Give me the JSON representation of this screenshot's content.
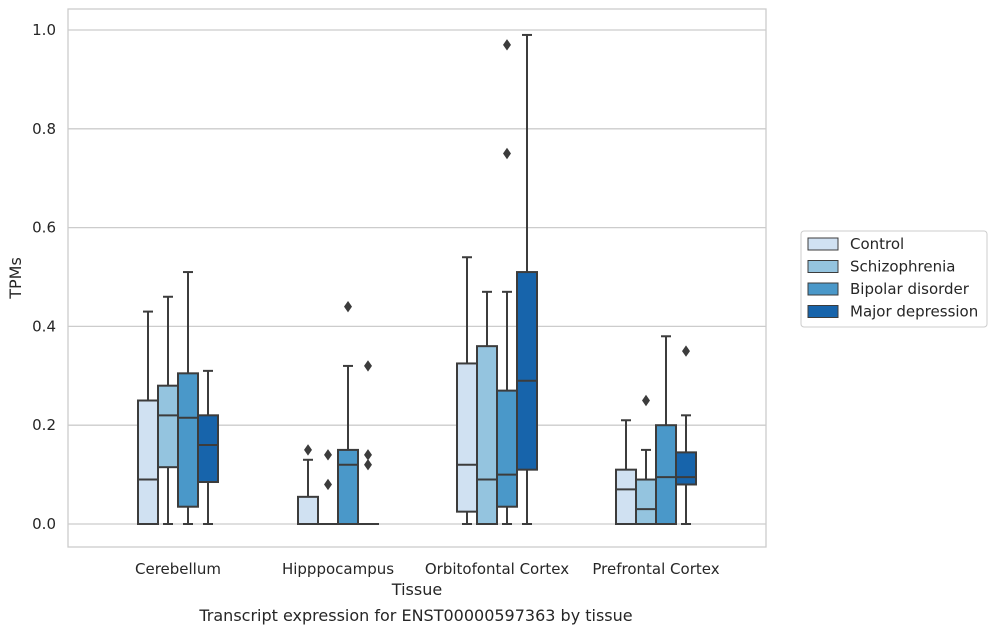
{
  "caption": "Transcript expression for ENST00000597363 by tissue",
  "chart_data": {
    "type": "boxplot",
    "xlabel": "Tissue",
    "ylabel": "TPMs",
    "ylim": [
      -0.05,
      1.04
    ],
    "yticks": [
      "0.0",
      "0.2",
      "0.4",
      "0.6",
      "0.8",
      "1.0"
    ],
    "grid": "horizontal",
    "legend_position": "right",
    "categories": [
      "Cerebellum",
      "Hipppocampus",
      "Orbitofontal Cortex",
      "Prefrontal Cortex"
    ],
    "series": [
      {
        "name": "Control",
        "color": "#d0e1f2",
        "boxes": [
          {
            "whislo": 0.0,
            "q1": 0.0,
            "med": 0.09,
            "q3": 0.25,
            "whishi": 0.43,
            "fliers": []
          },
          {
            "whislo": 0.0,
            "q1": 0.0,
            "med": 0.0,
            "q3": 0.055,
            "whishi": 0.13,
            "fliers": [
              0.15
            ]
          },
          {
            "whislo": 0.0,
            "q1": 0.025,
            "med": 0.12,
            "q3": 0.325,
            "whishi": 0.54,
            "fliers": []
          },
          {
            "whislo": 0.0,
            "q1": 0.0,
            "med": 0.07,
            "q3": 0.11,
            "whishi": 0.21,
            "fliers": []
          }
        ]
      },
      {
        "name": "Schizophrenia",
        "color": "#94c4df",
        "boxes": [
          {
            "whislo": 0.0,
            "q1": 0.115,
            "med": 0.22,
            "q3": 0.28,
            "whishi": 0.46,
            "fliers": []
          },
          {
            "whislo": 0.0,
            "q1": 0.0,
            "med": 0.0,
            "q3": 0.0,
            "whishi": 0.0,
            "fliers": [
              0.08,
              0.14
            ]
          },
          {
            "whislo": 0.0,
            "q1": 0.0,
            "med": 0.09,
            "q3": 0.36,
            "whishi": 0.47,
            "fliers": []
          },
          {
            "whislo": 0.0,
            "q1": 0.0,
            "med": 0.03,
            "q3": 0.09,
            "whishi": 0.15,
            "fliers": [
              0.25
            ]
          }
        ]
      },
      {
        "name": "Bipolar disorder",
        "color": "#4a98c9",
        "boxes": [
          {
            "whislo": 0.0,
            "q1": 0.035,
            "med": 0.215,
            "q3": 0.305,
            "whishi": 0.51,
            "fliers": []
          },
          {
            "whislo": 0.0,
            "q1": 0.0,
            "med": 0.12,
            "q3": 0.15,
            "whishi": 0.32,
            "fliers": [
              0.44
            ]
          },
          {
            "whislo": 0.0,
            "q1": 0.035,
            "med": 0.1,
            "q3": 0.27,
            "whishi": 0.47,
            "fliers": [
              0.75,
              0.97
            ]
          },
          {
            "whislo": 0.0,
            "q1": 0.0,
            "med": 0.095,
            "q3": 0.2,
            "whishi": 0.38,
            "fliers": []
          }
        ]
      },
      {
        "name": "Major depression",
        "color": "#1764ab",
        "boxes": [
          {
            "whislo": 0.0,
            "q1": 0.085,
            "med": 0.16,
            "q3": 0.22,
            "whishi": 0.31,
            "fliers": []
          },
          {
            "whislo": 0.0,
            "q1": 0.0,
            "med": 0.0,
            "q3": 0.0,
            "whishi": 0.0,
            "fliers": [
              0.12,
              0.14,
              0.32
            ]
          },
          {
            "whislo": 0.0,
            "q1": 0.11,
            "med": 0.29,
            "q3": 0.51,
            "whishi": 0.99,
            "fliers": []
          },
          {
            "whislo": 0.0,
            "q1": 0.08,
            "med": 0.095,
            "q3": 0.145,
            "whishi": 0.22,
            "fliers": [
              0.35
            ]
          }
        ]
      }
    ]
  }
}
